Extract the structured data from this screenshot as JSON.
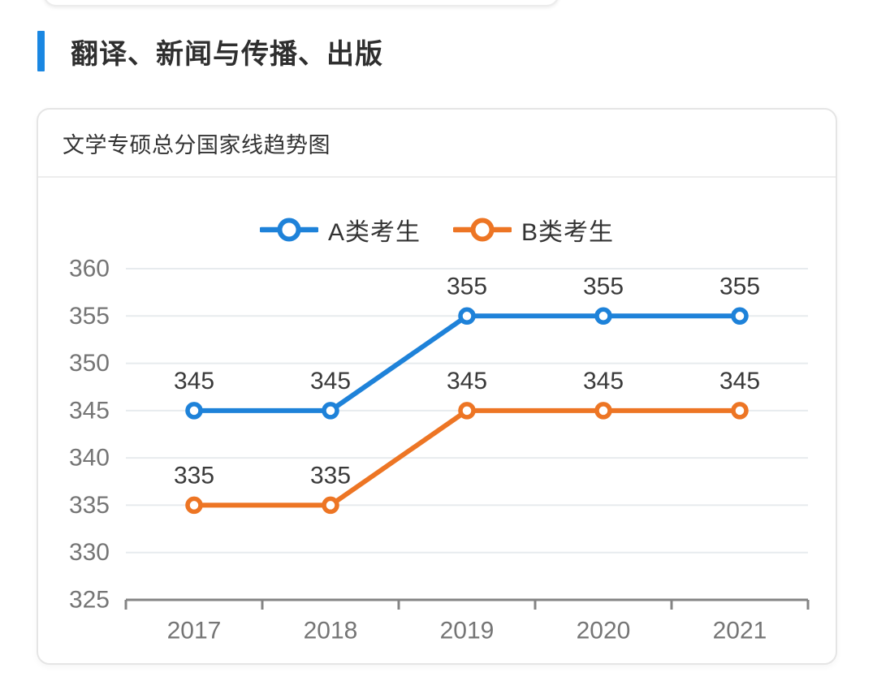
{
  "page": {
    "section_title": "翻译、新闻与传播、出版",
    "accent_color": "#1a87e2"
  },
  "card": {
    "title": "文学专硕总分国家线趋势图"
  },
  "chart_data": {
    "type": "line",
    "title": "文学专硕总分国家线趋势图",
    "categories": [
      "2017",
      "2018",
      "2019",
      "2020",
      "2021"
    ],
    "series": [
      {
        "name": "A类考生",
        "color": "#1e82d9",
        "values": [
          345,
          345,
          355,
          355,
          355
        ]
      },
      {
        "name": "B类考生",
        "color": "#ed7524",
        "values": [
          335,
          335,
          345,
          345,
          345
        ]
      }
    ],
    "yticks": [
      360,
      355,
      350,
      345,
      340,
      335,
      330,
      325
    ],
    "ylim": [
      325,
      360
    ],
    "xlabel": "",
    "ylabel": "",
    "grid": true,
    "legend_position": "top",
    "data_labels": true,
    "marker": "open-circle",
    "colors": {
      "grid_line": "#e7ebee",
      "axis_line": "#848484",
      "tick_label": "#757575",
      "data_label": "#3a3a3a",
      "legend_text": "#333333"
    }
  }
}
